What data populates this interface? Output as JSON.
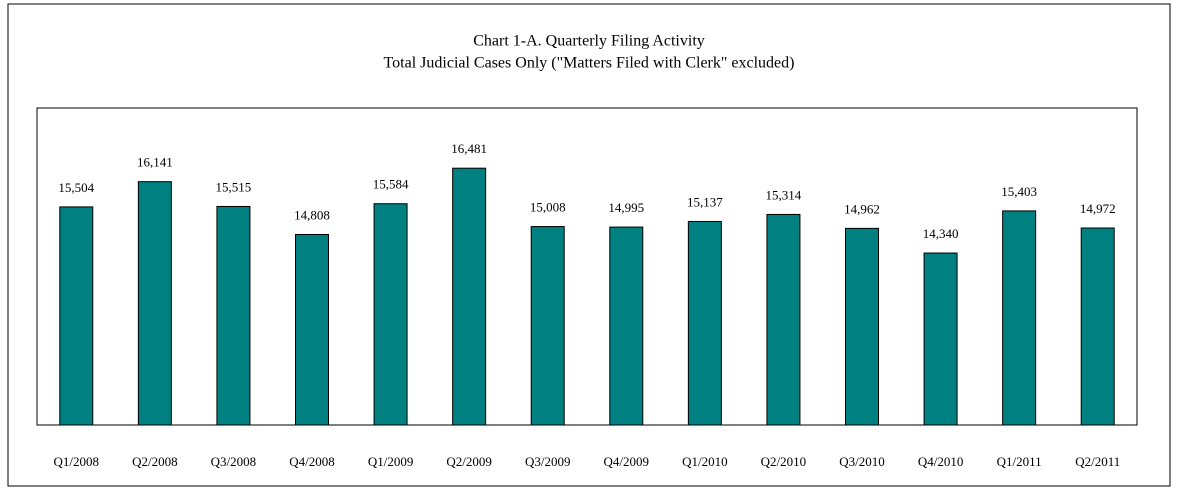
{
  "chart_data": {
    "type": "bar",
    "title": "Chart 1-A. Quarterly Filing Activity",
    "subtitle": "Total Judicial Cases Only (\"Matters Filed with Clerk\" excluded)",
    "categories": [
      "Q1/2008",
      "Q2/2008",
      "Q3/2008",
      "Q4/2008",
      "Q1/2009",
      "Q2/2009",
      "Q3/2009",
      "Q4/2009",
      "Q1/2010",
      "Q2/2010",
      "Q3/2010",
      "Q4/2010",
      "Q1/2011",
      "Q2/2011"
    ],
    "values": [
      15504,
      16141,
      15515,
      14808,
      15584,
      16481,
      15008,
      14995,
      15137,
      15314,
      14962,
      14340,
      15403,
      14972
    ],
    "value_labels": [
      "15,504",
      "16,141",
      "15,515",
      "14,808",
      "15,584",
      "16,481",
      "15,008",
      "14,995",
      "15,137",
      "15,314",
      "14,962",
      "14,340",
      "15,403",
      "14,972"
    ],
    "color": "#008080",
    "ylim": [
      10000,
      18000
    ]
  }
}
